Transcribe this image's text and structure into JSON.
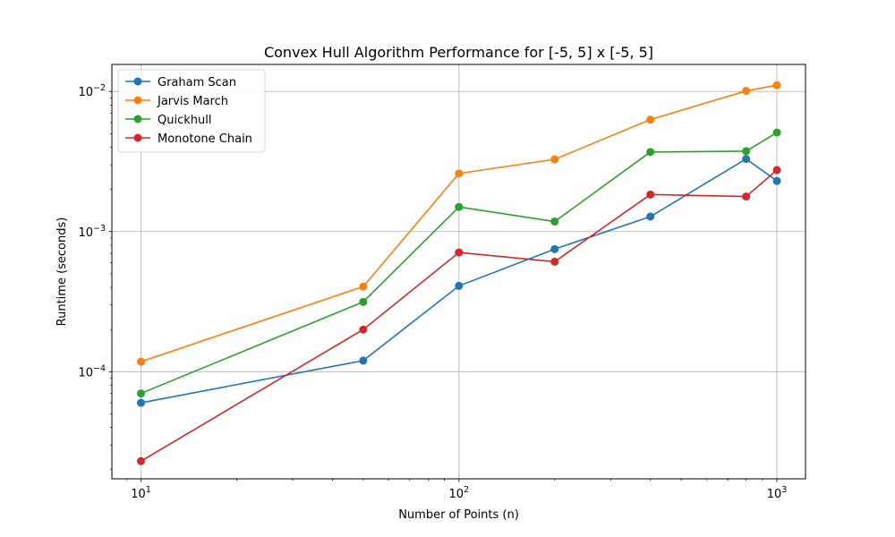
{
  "chart_data": {
    "type": "line",
    "title": "Convex Hull Algorithm Performance for [-5, 5] x [-5, 5]",
    "xlabel": "Number of Points (n)",
    "ylabel": "Runtime (seconds)",
    "xscale": "log",
    "yscale": "log",
    "xlim": [
      8.1,
      1230
    ],
    "ylim": [
      1.72e-05,
      0.0156
    ],
    "grid": true,
    "legend_position": "top-left",
    "x": [
      10,
      50,
      100,
      200,
      400,
      800,
      1000
    ],
    "x_ticks": [
      {
        "value": 10,
        "base": "10",
        "exp": "1"
      },
      {
        "value": 100,
        "base": "10",
        "exp": "2"
      },
      {
        "value": 1000,
        "base": "10",
        "exp": "3"
      }
    ],
    "y_ticks": [
      {
        "value": 0.0001,
        "base": "10",
        "exp": "−4"
      },
      {
        "value": 0.001,
        "base": "10",
        "exp": "−3"
      },
      {
        "value": 0.01,
        "base": "10",
        "exp": "−2"
      }
    ],
    "series": [
      {
        "name": "Graham Scan",
        "color": "#1f77b4",
        "values": [
          6e-05,
          0.00012,
          0.00041,
          0.00075,
          0.00128,
          0.0033,
          0.0023
        ]
      },
      {
        "name": "Jarvis March",
        "color": "#ff7f0e",
        "values": [
          0.000118,
          0.000405,
          0.0026,
          0.00328,
          0.0063,
          0.0101,
          0.0111
        ]
      },
      {
        "name": "Quickhull",
        "color": "#2ca02c",
        "values": [
          7e-05,
          0.000315,
          0.0015,
          0.00118,
          0.0037,
          0.00375,
          0.0051
        ]
      },
      {
        "name": "Monotone Chain",
        "color": "#d62728",
        "values": [
          2.3e-05,
          0.0002,
          0.00071,
          0.00061,
          0.00184,
          0.00178,
          0.00275
        ]
      }
    ]
  }
}
